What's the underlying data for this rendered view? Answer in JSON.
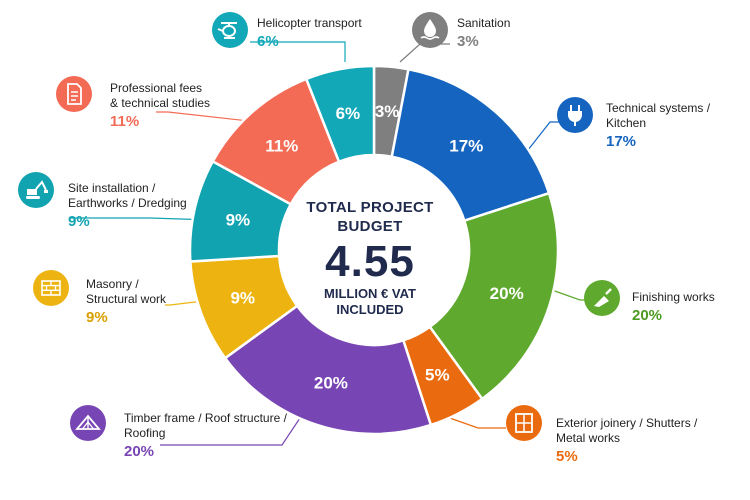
{
  "center": {
    "line1": "TOTAL PROJECT",
    "line2": "BUDGET",
    "amount": "4.55",
    "line3": "MILLION € VAT",
    "line4": "INCLUDED"
  },
  "chart_data": {
    "type": "pie",
    "donut": true,
    "title": "",
    "unit": "%",
    "slices": [
      {
        "key": "sanitation",
        "label": "Sanitation",
        "value": 3,
        "value_label": "3%",
        "color": "#7f7f7f",
        "icon": "water-drop-icon"
      },
      {
        "key": "technical",
        "label": "Technical systems / Kitchen",
        "value": 17,
        "value_label": "17%",
        "color": "#1565c0",
        "icon": "electric-plug-icon"
      },
      {
        "key": "finishing",
        "label": "Finishing works",
        "value": 20,
        "value_label": "20%",
        "color": "#5faa2e",
        "icon": "trowel-icon"
      },
      {
        "key": "joinery",
        "label": "Exterior joinery / Shutters / Metal works",
        "value": 5,
        "value_label": "5%",
        "color": "#ea6b0f",
        "icon": "window-icon"
      },
      {
        "key": "timber",
        "label": "Timber frame / Roof structure / Roofing",
        "value": 20,
        "value_label": "20%",
        "color": "#7846b4",
        "icon": "roof-truss-icon"
      },
      {
        "key": "masonry",
        "label": "Masonry / Structural work",
        "value": 9,
        "value_label": "9%",
        "color": "#edb411",
        "icon": "brick-wall-icon"
      },
      {
        "key": "site",
        "label": "Site installation / Earthworks / Dredging",
        "value": 9,
        "value_label": "9%",
        "color": "#12a3b0",
        "icon": "excavator-icon"
      },
      {
        "key": "fees",
        "label": "Professional fees & technical studies",
        "value": 11,
        "value_label": "11%",
        "color": "#f36b55",
        "icon": "document-icon"
      },
      {
        "key": "heli",
        "label": "Helicopter transport",
        "value": 6,
        "value_label": "6%",
        "color": "#12a8b8",
        "icon": "helicopter-icon"
      }
    ]
  },
  "legend": [
    {
      "key": "heli",
      "lines": [
        "Helicopter transport"
      ],
      "value_label": "6%",
      "color": "#12a8b8",
      "text_color": "#12a8b8"
    },
    {
      "key": "sanitation",
      "lines": [
        "Sanitation"
      ],
      "value_label": "3%",
      "color": "#7f7f7f",
      "text_color": "#7f7f7f"
    },
    {
      "key": "fees",
      "lines": [
        "Professional fees",
        "& technical studies"
      ],
      "value_label": "11%",
      "color": "#f36b55",
      "text_color": "#f36b55"
    },
    {
      "key": "technical",
      "lines": [
        "Technical systems /",
        "Kitchen"
      ],
      "value_label": "17%",
      "color": "#1565c0",
      "text_color": "#1565c0"
    },
    {
      "key": "site",
      "lines": [
        "Site installation /",
        "Earthworks / Dredging"
      ],
      "value_label": "9%",
      "color": "#12a3b0",
      "text_color": "#12a3b0"
    },
    {
      "key": "masonry",
      "lines": [
        "Masonry /",
        "Structural work"
      ],
      "value_label": "9%",
      "color": "#edb411",
      "text_color": "#d9a000"
    },
    {
      "key": "finishing",
      "lines": [
        "Finishing works"
      ],
      "value_label": "20%",
      "color": "#5faa2e",
      "text_color": "#4e9a22"
    },
    {
      "key": "timber",
      "lines": [
        "Timber frame / Roof structure /",
        "Roofing"
      ],
      "value_label": "20%",
      "color": "#7846b4",
      "text_color": "#7846b4"
    },
    {
      "key": "joinery",
      "lines": [
        "Exterior joinery / Shutters /",
        "Metal works"
      ],
      "value_label": "5%",
      "color": "#ea6b0f",
      "text_color": "#ea6b0f"
    }
  ]
}
